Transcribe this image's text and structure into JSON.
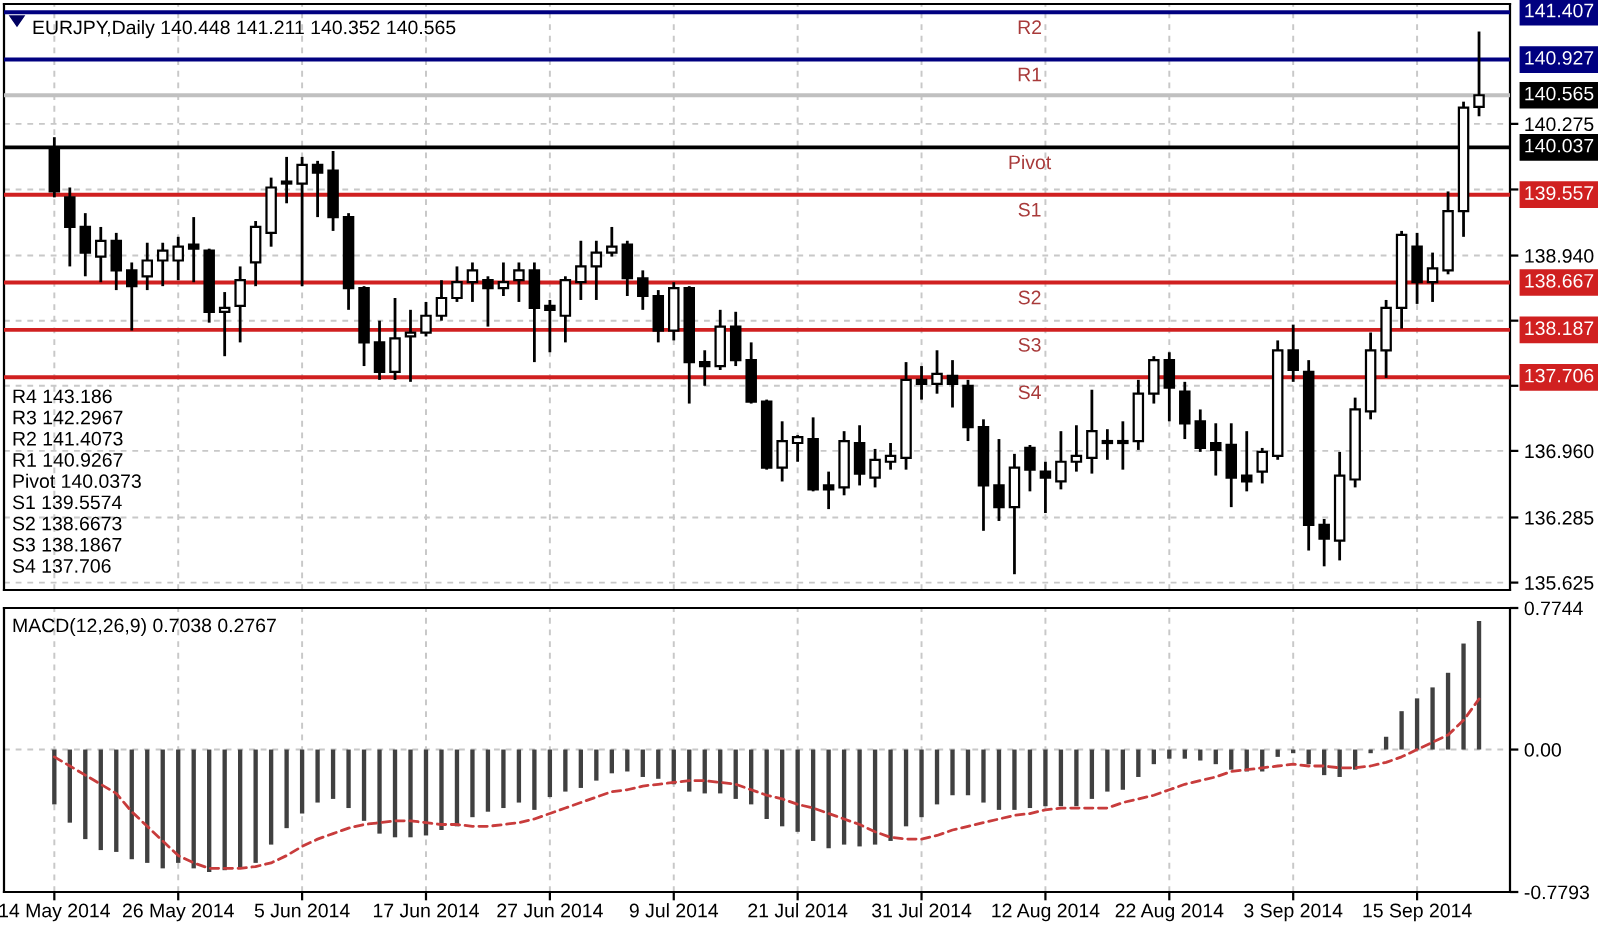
{
  "chart_data": [
    {
      "type": "candlestick",
      "title": "EURJPY,Daily 140.448 141.211 140.352 140.565",
      "categories": [
        null,
        null,
        null,
        null,
        null,
        null,
        null,
        null,
        null,
        null,
        null,
        null,
        null,
        null,
        null,
        null,
        null,
        null,
        null,
        null,
        null,
        null,
        null,
        null,
        null,
        null,
        null,
        null,
        null,
        null,
        null,
        null,
        null,
        null,
        null,
        null,
        null,
        null,
        null,
        null,
        null,
        null,
        null,
        null,
        null,
        null,
        null,
        null,
        null,
        null,
        null,
        null,
        null,
        null,
        null,
        null,
        null,
        null,
        null,
        null,
        null,
        null,
        null,
        null,
        null,
        null,
        null,
        null,
        null,
        null,
        null,
        null,
        null,
        null,
        null,
        null,
        null,
        null,
        null,
        null,
        null,
        null,
        null,
        null,
        null,
        null,
        null,
        null,
        null,
        null,
        null,
        null,
        null
      ],
      "ohlc": [
        [
          140.04,
          140.14,
          139.53,
          139.59
        ],
        [
          139.53,
          139.63,
          138.83,
          139.23
        ],
        [
          139.23,
          139.37,
          138.73,
          138.97
        ],
        [
          138.93,
          139.23,
          138.67,
          139.09
        ],
        [
          139.09,
          139.17,
          138.59,
          138.79
        ],
        [
          138.79,
          138.87,
          138.18,
          138.63
        ],
        [
          138.73,
          139.07,
          138.59,
          138.89
        ],
        [
          138.89,
          139.07,
          138.63,
          138.99
        ],
        [
          138.89,
          139.13,
          138.69,
          139.03
        ],
        [
          139.05,
          139.33,
          138.67,
          139.01
        ],
        [
          138.99,
          139.01,
          138.26,
          138.37
        ],
        [
          138.37,
          138.57,
          137.92,
          138.41
        ],
        [
          138.43,
          138.83,
          138.06,
          138.69
        ],
        [
          138.87,
          139.29,
          138.63,
          139.23
        ],
        [
          139.17,
          139.73,
          139.03,
          139.63
        ],
        [
          139.69,
          139.94,
          139.47,
          139.67
        ],
        [
          139.67,
          139.94,
          138.63,
          139.86
        ],
        [
          139.86,
          139.9,
          139.33,
          139.78
        ],
        [
          139.8,
          140.0,
          139.19,
          139.33
        ],
        [
          139.33,
          139.37,
          138.39,
          138.61
        ],
        [
          138.61,
          138.63,
          137.82,
          138.06
        ],
        [
          138.06,
          138.28,
          137.68,
          137.76
        ],
        [
          137.76,
          138.51,
          137.68,
          138.1
        ],
        [
          138.12,
          138.39,
          137.66,
          138.16
        ],
        [
          138.16,
          138.47,
          138.12,
          138.33
        ],
        [
          138.33,
          138.69,
          138.28,
          138.51
        ],
        [
          138.51,
          138.83,
          138.47,
          138.67
        ],
        [
          138.67,
          138.87,
          138.47,
          138.79
        ],
        [
          138.69,
          138.73,
          138.22,
          138.61
        ],
        [
          138.61,
          138.87,
          138.53,
          138.67
        ],
        [
          138.69,
          138.87,
          138.47,
          138.79
        ],
        [
          138.79,
          138.87,
          137.86,
          138.41
        ],
        [
          138.43,
          138.49,
          137.96,
          138.39
        ],
        [
          138.33,
          138.73,
          138.06,
          138.69
        ],
        [
          138.67,
          139.09,
          138.49,
          138.83
        ],
        [
          138.83,
          139.09,
          138.49,
          138.97
        ],
        [
          138.97,
          139.23,
          138.93,
          139.03
        ],
        [
          139.05,
          139.09,
          138.53,
          138.71
        ],
        [
          138.71,
          138.79,
          138.39,
          138.53
        ],
        [
          138.53,
          138.59,
          138.06,
          138.18
        ],
        [
          138.18,
          138.67,
          138.08,
          138.61
        ],
        [
          138.61,
          138.63,
          137.44,
          137.86
        ],
        [
          137.86,
          137.98,
          137.62,
          137.82
        ],
        [
          137.82,
          138.39,
          137.78,
          138.22
        ],
        [
          138.22,
          138.37,
          137.82,
          137.88
        ],
        [
          137.88,
          138.06,
          137.44,
          137.46
        ],
        [
          137.46,
          137.48,
          136.77,
          136.79
        ],
        [
          136.79,
          137.26,
          136.65,
          137.06
        ],
        [
          137.04,
          137.12,
          136.85,
          137.1
        ],
        [
          137.08,
          137.3,
          136.55,
          136.57
        ],
        [
          136.61,
          136.75,
          136.37,
          136.57
        ],
        [
          136.59,
          137.16,
          136.51,
          137.06
        ],
        [
          137.04,
          137.22,
          136.61,
          136.73
        ],
        [
          136.69,
          136.98,
          136.59,
          136.87
        ],
        [
          136.85,
          137.04,
          136.77,
          136.91
        ],
        [
          136.89,
          137.86,
          136.77,
          137.68
        ],
        [
          137.68,
          137.82,
          137.48,
          137.64
        ],
        [
          137.64,
          137.98,
          137.54,
          137.74
        ],
        [
          137.72,
          137.88,
          137.4,
          137.64
        ],
        [
          137.62,
          137.68,
          137.06,
          137.2
        ],
        [
          137.2,
          137.28,
          136.15,
          136.61
        ],
        [
          136.61,
          137.08,
          136.25,
          136.39
        ],
        [
          136.39,
          136.93,
          135.71,
          136.79
        ],
        [
          136.99,
          137.02,
          136.55,
          136.77
        ],
        [
          136.75,
          136.85,
          136.33,
          136.69
        ],
        [
          136.65,
          137.16,
          136.57,
          136.85
        ],
        [
          136.85,
          137.22,
          136.75,
          136.91
        ],
        [
          136.89,
          137.58,
          136.73,
          137.16
        ],
        [
          137.06,
          137.18,
          136.87,
          137.04
        ],
        [
          137.06,
          137.26,
          136.77,
          137.04
        ],
        [
          137.06,
          137.68,
          136.97,
          137.54
        ],
        [
          137.54,
          137.92,
          137.44,
          137.88
        ],
        [
          137.88,
          137.96,
          137.26,
          137.6
        ],
        [
          137.56,
          137.66,
          137.08,
          137.24
        ],
        [
          137.26,
          137.38,
          136.95,
          136.99
        ],
        [
          137.04,
          137.24,
          136.71,
          136.97
        ],
        [
          137.02,
          137.24,
          136.39,
          136.69
        ],
        [
          136.71,
          137.16,
          136.55,
          136.65
        ],
        [
          136.75,
          136.99,
          136.63,
          136.95
        ],
        [
          136.91,
          138.08,
          136.87,
          137.98
        ],
        [
          137.98,
          138.24,
          137.66,
          137.78
        ],
        [
          137.76,
          137.88,
          135.95,
          136.21
        ],
        [
          136.21,
          136.27,
          135.79,
          136.07
        ],
        [
          136.05,
          136.95,
          135.85,
          136.71
        ],
        [
          136.67,
          137.5,
          136.59,
          137.38
        ],
        [
          137.36,
          138.16,
          137.28,
          137.98
        ],
        [
          137.98,
          138.49,
          137.7,
          138.41
        ],
        [
          138.41,
          139.19,
          138.2,
          139.15
        ],
        [
          139.03,
          139.17,
          138.45,
          138.67
        ],
        [
          138.67,
          138.97,
          138.47,
          138.81
        ],
        [
          138.79,
          139.59,
          138.75,
          139.39
        ],
        [
          139.39,
          140.5,
          139.13,
          140.44
        ],
        [
          140.448,
          141.211,
          140.352,
          140.565
        ]
      ],
      "ylim": [
        135.55,
        141.49
      ],
      "yticks": [
        135.625,
        136.285,
        {
          "value": 136.96,
          "label": "136.960"
        },
        {
          "value": 137.62,
          "label": null
        },
        {
          "value": 138.28,
          "label": null
        },
        {
          "value": 138.94,
          "label": "138.940"
        },
        {
          "value": 139.61,
          "label": null
        },
        140.275
      ],
      "grid": true,
      "ref_lines": [
        {
          "axis": "y",
          "value": 141.407,
          "label": "141.407",
          "color": "#000080"
        },
        {
          "axis": "y",
          "value": 140.927,
          "label": "140.927",
          "color": "#000080"
        },
        {
          "axis": "y",
          "value": 140.565,
          "label": "140.565",
          "color": "#c0c0c0"
        },
        {
          "axis": "y",
          "value": 140.037,
          "label": "140.037",
          "color": "#000000"
        },
        {
          "axis": "y",
          "value": 139.557,
          "label": "139.557",
          "color": "#d02020"
        },
        {
          "axis": "y",
          "value": 138.667,
          "label": "138.667",
          "color": "#d02020"
        },
        {
          "axis": "y",
          "value": 138.187,
          "label": "138.187",
          "color": "#d02020"
        },
        {
          "axis": "y",
          "value": 137.706,
          "label": "137.706",
          "color": "#d02020"
        }
      ],
      "annotations": [
        "R4 143.186",
        "R3 142.2967",
        "R2 141.4073",
        "R1 140.9267",
        "Pivot 140.0373",
        "S1 139.5574",
        "S2 138.6673",
        "S3 138.1867",
        "S4 137.706",
        {
          "text": "R2",
          "y": 141.407
        },
        {
          "text": "R1",
          "y": 140.927
        },
        {
          "text": "Pivot",
          "y": 140.037
        },
        {
          "text": "S1",
          "y": 139.557
        },
        {
          "text": "S2",
          "y": 138.667
        },
        {
          "text": "S3",
          "y": 138.187
        },
        {
          "text": "S4",
          "y": 137.706
        }
      ]
    },
    {
      "type": "bar",
      "title": "MACD(12,26,9) 0.7038 0.2767",
      "categories": [
        "14 May 2014",
        null,
        null,
        null,
        null,
        null,
        null,
        null,
        "26 May 2014",
        null,
        null,
        null,
        null,
        null,
        null,
        null,
        "5 Jun 2014",
        null,
        null,
        null,
        null,
        null,
        null,
        null,
        "17 Jun 2014",
        null,
        null,
        null,
        null,
        null,
        null,
        null,
        "27 Jun 2014",
        null,
        null,
        null,
        null,
        null,
        null,
        null,
        "9 Jul 2014",
        null,
        null,
        null,
        null,
        null,
        null,
        null,
        "21 Jul 2014",
        null,
        null,
        null,
        null,
        null,
        null,
        null,
        "31 Jul 2014",
        null,
        null,
        null,
        null,
        null,
        null,
        null,
        "12 Aug 2014",
        null,
        null,
        null,
        null,
        null,
        null,
        null,
        "22 Aug 2014",
        null,
        null,
        null,
        null,
        null,
        null,
        null,
        "3 Sep 2014",
        null,
        null,
        null,
        null,
        null,
        null,
        null,
        "15 Sep 2014",
        null,
        null,
        null,
        null
      ],
      "series": [
        {
          "type": "bar",
          "color": "#404040",
          "values": [
            -0.3,
            -0.4,
            -0.49,
            -0.55,
            -0.56,
            -0.6,
            -0.62,
            -0.65,
            -0.62,
            -0.65,
            -0.67,
            -0.66,
            -0.65,
            -0.62,
            -0.52,
            -0.43,
            -0.35,
            -0.29,
            -0.27,
            -0.32,
            -0.39,
            -0.46,
            -0.48,
            -0.48,
            -0.47,
            -0.44,
            -0.42,
            -0.37,
            -0.34,
            -0.32,
            -0.29,
            -0.33,
            -0.26,
            -0.23,
            -0.21,
            -0.17,
            -0.13,
            -0.12,
            -0.15,
            -0.16,
            -0.19,
            -0.23,
            -0.24,
            -0.24,
            -0.27,
            -0.3,
            -0.38,
            -0.42,
            -0.45,
            -0.5,
            -0.54,
            -0.52,
            -0.53,
            -0.52,
            -0.5,
            -0.42,
            -0.37,
            -0.3,
            -0.25,
            -0.25,
            -0.29,
            -0.33,
            -0.33,
            -0.32,
            -0.31,
            -0.31,
            -0.31,
            -0.27,
            -0.23,
            -0.22,
            -0.15,
            -0.08,
            -0.05,
            -0.05,
            -0.06,
            -0.08,
            -0.11,
            -0.12,
            -0.12,
            -0.04,
            -0.02,
            -0.08,
            -0.14,
            -0.15,
            -0.11,
            -0.02,
            0.07,
            0.21,
            0.28,
            0.34,
            0.42,
            0.58,
            0.7038
          ]
        },
        {
          "type": "line",
          "color": "#c83c3c",
          "line_style": "dashed",
          "values": [
            -0.04,
            -0.09,
            -0.14,
            -0.19,
            -0.24,
            -0.34,
            -0.42,
            -0.5,
            -0.58,
            -0.62,
            -0.65,
            -0.65,
            -0.65,
            -0.64,
            -0.62,
            -0.58,
            -0.53,
            -0.49,
            -0.46,
            -0.43,
            -0.41,
            -0.4,
            -0.39,
            -0.39,
            -0.4,
            -0.41,
            -0.41,
            -0.42,
            -0.42,
            -0.41,
            -0.4,
            -0.38,
            -0.35,
            -0.32,
            -0.29,
            -0.26,
            -0.23,
            -0.22,
            -0.2,
            -0.19,
            -0.18,
            -0.17,
            -0.17,
            -0.18,
            -0.19,
            -0.22,
            -0.25,
            -0.27,
            -0.3,
            -0.32,
            -0.35,
            -0.38,
            -0.41,
            -0.45,
            -0.48,
            -0.49,
            -0.49,
            -0.47,
            -0.44,
            -0.42,
            -0.4,
            -0.38,
            -0.36,
            -0.35,
            -0.33,
            -0.32,
            -0.32,
            -0.32,
            -0.32,
            -0.29,
            -0.27,
            -0.25,
            -0.22,
            -0.19,
            -0.17,
            -0.15,
            -0.12,
            -0.11,
            -0.1,
            -0.09,
            -0.08,
            -0.09,
            -0.09,
            -0.1,
            -0.1,
            -0.09,
            -0.07,
            -0.04,
            0.0,
            0.04,
            0.08,
            0.16,
            0.2767
          ]
        }
      ],
      "ylim": [
        -0.7793,
        0.7744
      ],
      "yticks": [
        -0.7793,
        {
          "value": 0,
          "label": "0.00"
        },
        0.7744
      ],
      "grid": true
    }
  ]
}
